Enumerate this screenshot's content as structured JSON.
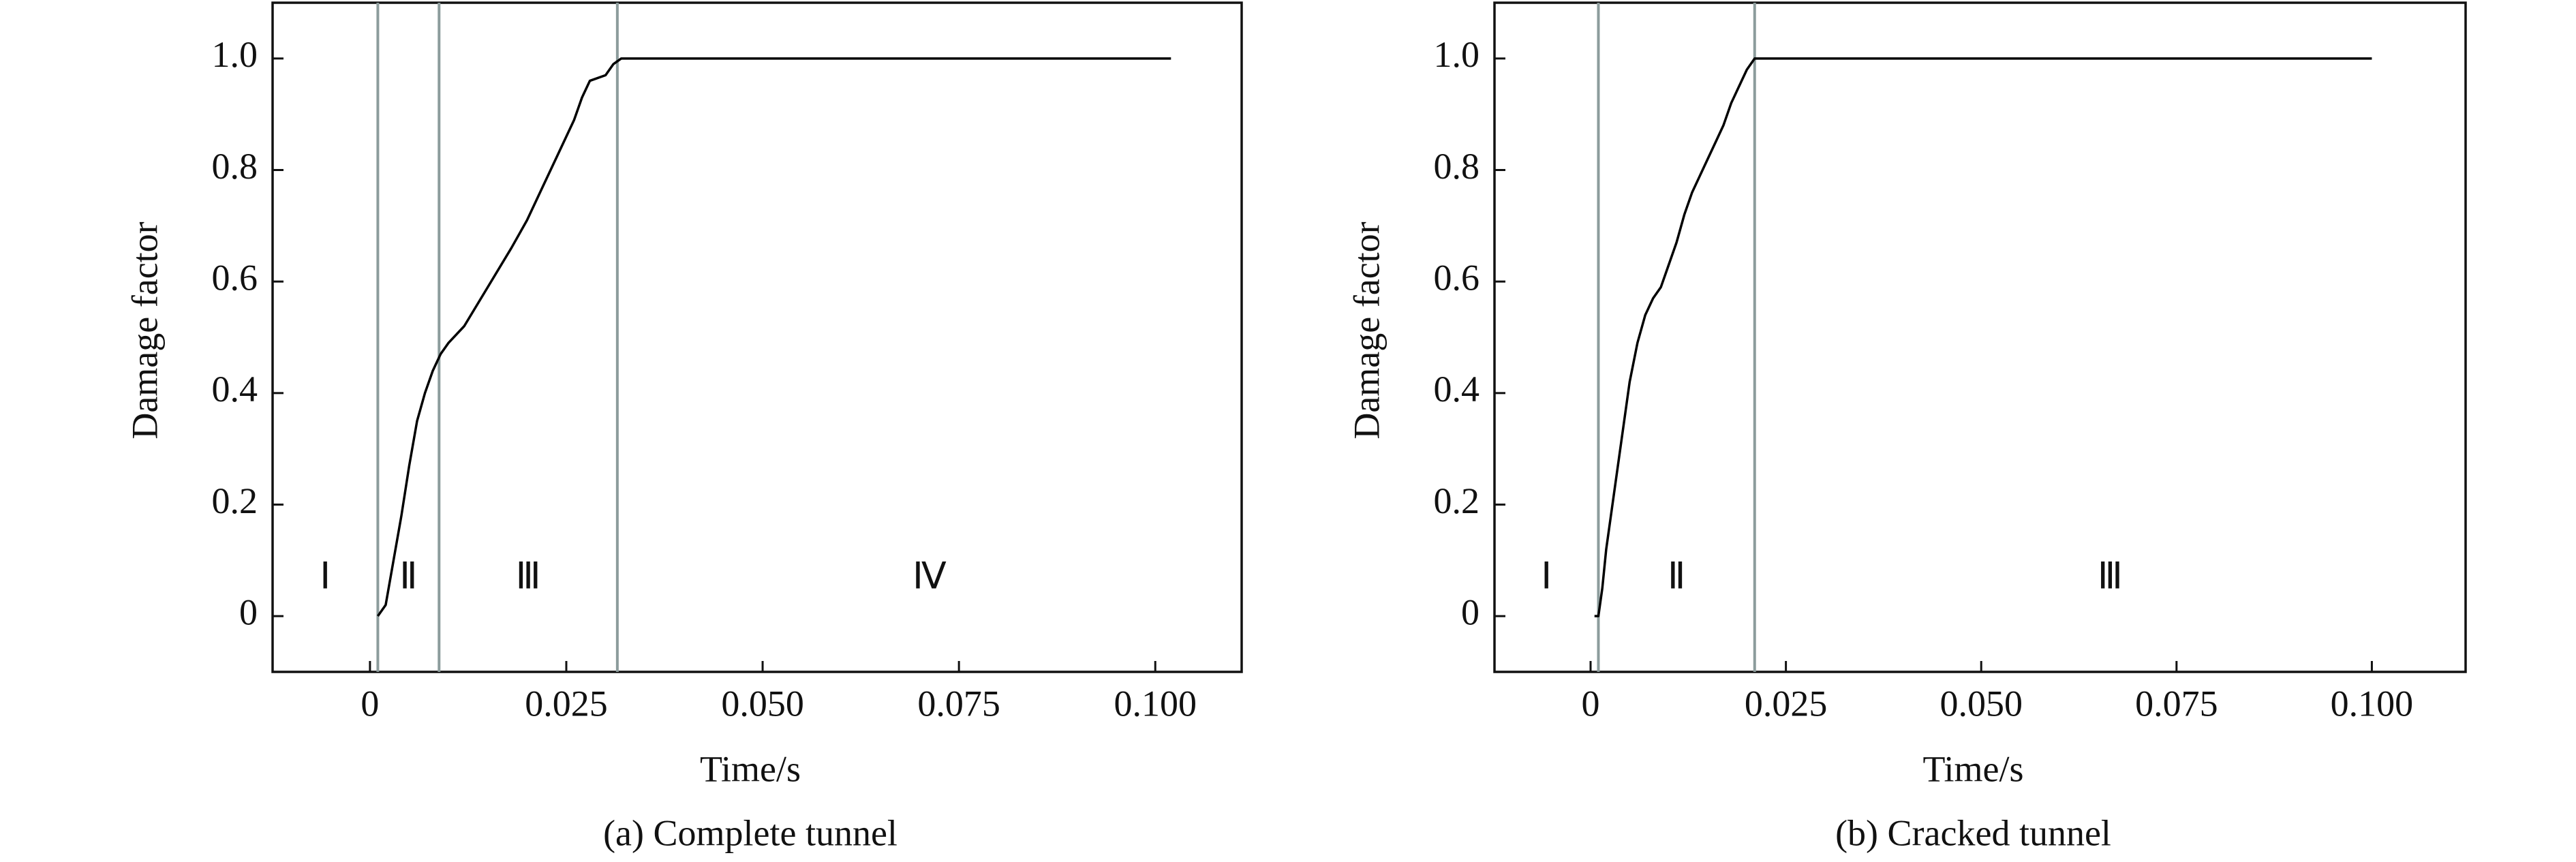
{
  "chart_data": [
    {
      "type": "line",
      "caption": "(a) Complete tunnel",
      "xlabel": "Time/s",
      "ylabel": "Damage factor",
      "x": [
        0.001,
        0.002,
        0.003,
        0.004,
        0.005,
        0.006,
        0.007,
        0.008,
        0.009,
        0.01,
        0.012,
        0.015,
        0.018,
        0.02,
        0.022,
        0.024,
        0.026,
        0.027,
        0.028,
        0.03,
        0.031,
        0.032,
        0.102
      ],
      "values": [
        0,
        0.02,
        0.1,
        0.18,
        0.27,
        0.35,
        0.4,
        0.44,
        0.47,
        0.49,
        0.52,
        0.59,
        0.66,
        0.71,
        0.77,
        0.83,
        0.89,
        0.93,
        0.96,
        0.97,
        0.99,
        1.0,
        1.0
      ],
      "color": "#000000",
      "boundaries": [
        0.001,
        0.0088,
        0.0315
      ],
      "boundary_color": "#8c9c9c",
      "region_labels": [
        "Ⅰ",
        "Ⅱ",
        "Ⅲ",
        "Ⅳ"
      ],
      "xlim": [
        -0.0124,
        0.111
      ],
      "ylim": [
        -0.1,
        1.1
      ],
      "xticks": [
        0,
        0.025,
        {
          "value": 0.05,
          "label": "0.050"
        },
        0.075,
        {
          "value": 0.1,
          "label": "0.100"
        }
      ],
      "yticks": [
        0,
        0.2,
        0.4,
        0.6,
        0.8,
        {
          "value": 1,
          "label": "1.0"
        }
      ]
    },
    {
      "type": "line",
      "caption": "(b) Cracked tunnel",
      "xlabel": "Time/s",
      "ylabel": "Damage factor",
      "x": [
        0.0005,
        0.001,
        0.0015,
        0.002,
        0.003,
        0.004,
        0.005,
        0.006,
        0.007,
        0.008,
        0.009,
        0.01,
        0.011,
        0.012,
        0.013,
        0.014,
        0.015,
        0.016,
        0.017,
        0.018,
        0.019,
        0.02,
        0.021,
        0.1
      ],
      "values": [
        0,
        0,
        0.05,
        0.12,
        0.22,
        0.32,
        0.42,
        0.49,
        0.54,
        0.57,
        0.59,
        0.63,
        0.67,
        0.72,
        0.76,
        0.79,
        0.82,
        0.85,
        0.88,
        0.92,
        0.95,
        0.98,
        1.0,
        1.0
      ],
      "color": "#000000",
      "boundaries": [
        0.001,
        0.021
      ],
      "boundary_color": "#8c9c9c",
      "region_labels": [
        "Ⅰ",
        "Ⅱ",
        "Ⅲ"
      ],
      "xlim": [
        -0.0123,
        0.112
      ],
      "ylim": [
        -0.1,
        1.1
      ],
      "xticks": [
        0,
        0.025,
        {
          "value": 0.05,
          "label": "0.050"
        },
        0.075,
        {
          "value": 0.1,
          "label": "0.100"
        }
      ],
      "yticks": [
        0,
        0.2,
        0.4,
        0.6,
        0.8,
        {
          "value": 1,
          "label": "1.0"
        }
      ]
    }
  ]
}
